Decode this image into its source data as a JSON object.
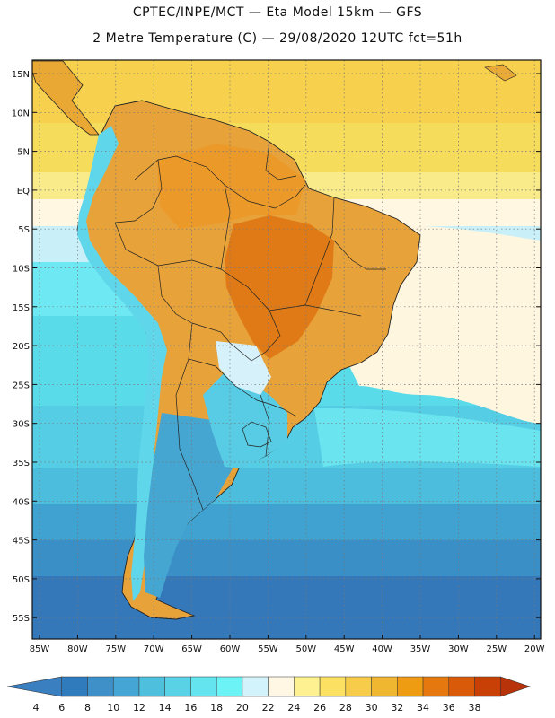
{
  "header": {
    "line1": "CPTEC/INPE/MCT —  Eta Model 15km — GFS",
    "line2": "2 Metre Temperature (C) — 29/08/2020 12UTC fct=51h"
  },
  "map": {
    "lat_labels": [
      "15N",
      "10N",
      "5N",
      "EQ",
      "5S",
      "10S",
      "15S",
      "20S",
      "25S",
      "30S",
      "35S",
      "40S",
      "45S",
      "50S",
      "55S"
    ],
    "lon_labels": [
      "85W",
      "80W",
      "75W",
      "70W",
      "65W",
      "60W",
      "55W",
      "50W",
      "45W",
      "40W",
      "35W",
      "30W",
      "25W",
      "20W"
    ]
  },
  "legend": {
    "colors": [
      "#3a7fc0",
      "#2f7bbb",
      "#3f8fc8",
      "#45a5d4",
      "#4fbfde",
      "#5ad2e6",
      "#63e4ee",
      "#6cf3f5",
      "#d2f3fb",
      "#fff6e4",
      "#fdf191",
      "#fce062",
      "#f7cc4a",
      "#efb630",
      "#ee9d12",
      "#e5790f",
      "#d95b0a",
      "#c94006",
      "#b8320a"
    ],
    "labels": [
      "4",
      "6",
      "8",
      "10",
      "12",
      "14",
      "16",
      "18",
      "20",
      "22",
      "24",
      "26",
      "28",
      "30",
      "32",
      "34",
      "36",
      "38"
    ]
  }
}
